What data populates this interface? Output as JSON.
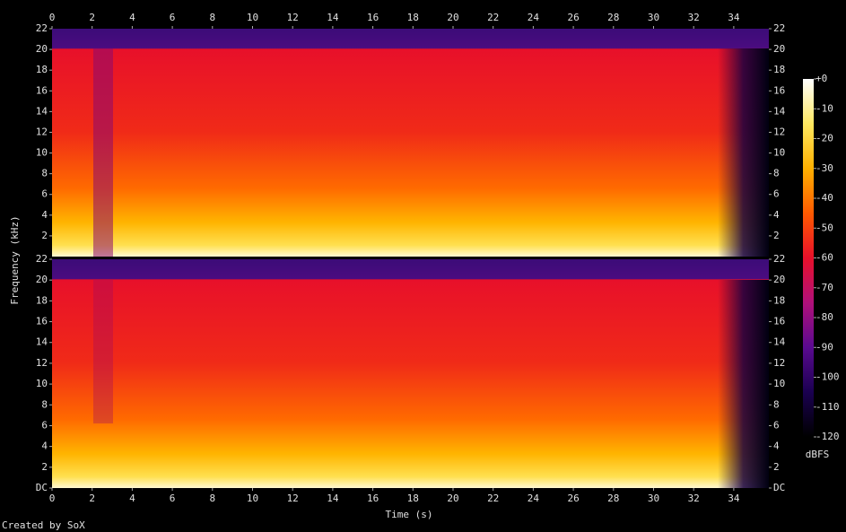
{
  "chart_data": {
    "type": "spectrogram",
    "xlabel": "Time (s)",
    "ylabel": "Frequency (kHz)",
    "credit": "Created by SoX",
    "xlim": [
      0,
      35.75
    ],
    "xticks": [
      0,
      2,
      4,
      6,
      8,
      10,
      12,
      14,
      16,
      18,
      20,
      22,
      24,
      26,
      28,
      30,
      32,
      34
    ],
    "channels": [
      {
        "ylim": [
          0,
          22
        ],
        "yticks": [
          2,
          4,
          6,
          8,
          10,
          12,
          14,
          16,
          18,
          20,
          22
        ]
      },
      {
        "ylim": [
          0,
          22
        ],
        "yticks": [
          {
            "value": 0,
            "label": "DC"
          },
          2,
          4,
          6,
          8,
          10,
          12,
          14,
          16,
          18,
          20,
          22
        ]
      }
    ],
    "colorbar": {
      "label": "dBFS",
      "zlim": [
        -120,
        0
      ],
      "zticks": [
        {
          "value": 0,
          "label": "+0"
        },
        -10,
        -20,
        -30,
        -40,
        -50,
        -60,
        -70,
        -80,
        -90,
        -100,
        -110,
        -120
      ],
      "colormap": [
        "#000000",
        "#1a0050",
        "#5a0a90",
        "#b0107a",
        "#e8102a",
        "#ff5a00",
        "#ffb000",
        "#ffe860",
        "#ffffff"
      ]
    }
  }
}
